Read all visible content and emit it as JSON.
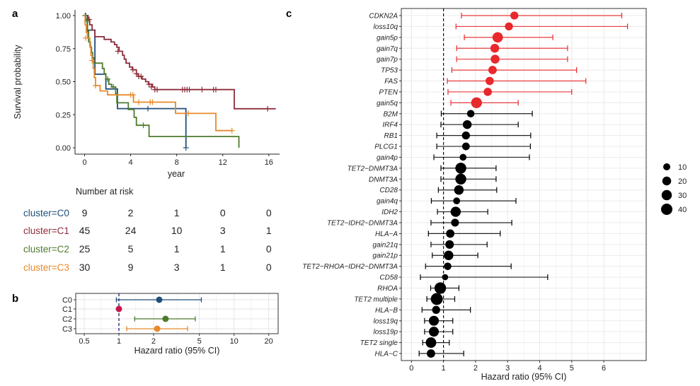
{
  "figure": {
    "panels": [
      "a",
      "b",
      "c"
    ]
  },
  "chart_data": [
    {
      "id": "a",
      "type": "line",
      "subtype": "kaplan-meier",
      "title": "",
      "xlabel": "year",
      "ylabel": "Survival probability",
      "xlim": [
        0,
        16.8
      ],
      "ylim": [
        0,
        1
      ],
      "x_ticks": [
        0,
        4,
        8,
        12,
        16
      ],
      "y_ticks": [
        "0.00",
        "0.25",
        "0.50",
        "0.75",
        "1.00"
      ],
      "grid": false,
      "series": [
        {
          "name": "cluster=C0",
          "color": "#1f4e79",
          "steps": [
            [
              0,
              1.0
            ],
            [
              0.25,
              0.89
            ],
            [
              0.9,
              0.556
            ],
            [
              1.85,
              0.445
            ],
            [
              2.85,
              0.296
            ],
            [
              8.8,
              0.0
            ]
          ],
          "end": 8.8,
          "censor": [
            [
              0.1,
              1.0
            ],
            [
              5.5,
              0.296
            ],
            [
              8.8,
              0.0
            ]
          ]
        },
        {
          "name": "cluster=C1",
          "color": "#8c2d3a",
          "steps": [
            [
              0,
              1.0
            ],
            [
              0.3,
              0.97
            ],
            [
              0.45,
              0.93
            ],
            [
              0.65,
              0.89
            ],
            [
              0.9,
              0.84
            ],
            [
              1.7,
              0.82
            ],
            [
              2.3,
              0.8
            ],
            [
              2.6,
              0.78
            ],
            [
              2.8,
              0.76
            ],
            [
              3.0,
              0.73
            ],
            [
              3.3,
              0.7
            ],
            [
              3.45,
              0.67
            ],
            [
              3.6,
              0.64
            ],
            [
              3.9,
              0.61
            ],
            [
              4.15,
              0.59
            ],
            [
              4.5,
              0.56
            ],
            [
              4.65,
              0.54
            ],
            [
              5.0,
              0.52
            ],
            [
              5.3,
              0.5
            ],
            [
              5.55,
              0.48
            ],
            [
              5.9,
              0.46
            ],
            [
              6.1,
              0.44
            ],
            [
              13.0,
              0.295
            ]
          ],
          "end": 16.6,
          "censor": [
            [
              0.4,
              0.97
            ],
            [
              2.9,
              0.73
            ],
            [
              4.2,
              0.59
            ],
            [
              4.5,
              0.56
            ],
            [
              4.7,
              0.54
            ],
            [
              4.9,
              0.54
            ],
            [
              5.6,
              0.48
            ],
            [
              5.8,
              0.46
            ],
            [
              6.1,
              0.44
            ],
            [
              6.3,
              0.44
            ],
            [
              8.5,
              0.44
            ],
            [
              8.7,
              0.44
            ],
            [
              8.9,
              0.44
            ],
            [
              9.1,
              0.44
            ],
            [
              10.2,
              0.44
            ],
            [
              11.2,
              0.44
            ],
            [
              11.4,
              0.44
            ],
            [
              15.9,
              0.295
            ]
          ]
        },
        {
          "name": "cluster=C2",
          "color": "#4e7a2e",
          "steps": [
            [
              0,
              1.0
            ],
            [
              0.1,
              0.96
            ],
            [
              0.25,
              0.88
            ],
            [
              0.35,
              0.8
            ],
            [
              0.5,
              0.76
            ],
            [
              0.6,
              0.72
            ],
            [
              0.7,
              0.68
            ],
            [
              0.8,
              0.64
            ],
            [
              1.55,
              0.6
            ],
            [
              1.7,
              0.56
            ],
            [
              1.85,
              0.52
            ],
            [
              2.1,
              0.48
            ],
            [
              2.35,
              0.46
            ],
            [
              2.7,
              0.41
            ],
            [
              2.8,
              0.34
            ],
            [
              3.8,
              0.29
            ],
            [
              4.3,
              0.23
            ],
            [
              4.5,
              0.17
            ],
            [
              5.6,
              0.085
            ],
            [
              13.4,
              0.0
            ]
          ],
          "end": 13.4,
          "censor": [
            [
              0.05,
              1.0
            ],
            [
              0.2,
              0.96
            ],
            [
              2.0,
              0.52
            ],
            [
              2.5,
              0.46
            ],
            [
              5.1,
              0.17
            ]
          ]
        },
        {
          "name": "cluster=C3",
          "color": "#e8892a",
          "steps": [
            [
              0,
              1.0
            ],
            [
              0.05,
              0.93
            ],
            [
              0.15,
              0.87
            ],
            [
              0.25,
              0.83
            ],
            [
              0.45,
              0.77
            ],
            [
              0.55,
              0.7
            ],
            [
              0.65,
              0.66
            ],
            [
              0.75,
              0.6
            ],
            [
              0.85,
              0.53
            ],
            [
              0.95,
              0.47
            ],
            [
              1.35,
              0.43
            ],
            [
              2.0,
              0.4
            ],
            [
              4.25,
              0.345
            ],
            [
              7.9,
              0.26
            ],
            [
              11.4,
              0.13
            ]
          ],
          "end": 12.8,
          "censor": [
            [
              0.1,
              0.83
            ],
            [
              0.65,
              0.66
            ],
            [
              0.95,
              0.47
            ],
            [
              4.0,
              0.4
            ],
            [
              4.2,
              0.4
            ],
            [
              4.7,
              0.345
            ],
            [
              5.7,
              0.345
            ],
            [
              5.9,
              0.345
            ],
            [
              9.0,
              0.26
            ],
            [
              12.8,
              0.13
            ]
          ]
        }
      ],
      "risk_table": {
        "title": "Number at risk",
        "times": [
          0,
          4,
          8,
          12,
          16
        ],
        "rows": [
          {
            "label": "cluster=C0",
            "color": "#1f4e79",
            "values": [
              9,
              2,
              1,
              0,
              0
            ]
          },
          {
            "label": "cluster=C1",
            "color": "#8c2d3a",
            "values": [
              45,
              24,
              10,
              3,
              1
            ]
          },
          {
            "label": "cluster=C2",
            "color": "#4e7a2e",
            "values": [
              25,
              5,
              1,
              1,
              0
            ]
          },
          {
            "label": "cluster=C3",
            "color": "#e8892a",
            "values": [
              30,
              9,
              3,
              1,
              0
            ]
          }
        ]
      }
    },
    {
      "id": "b",
      "type": "scatter",
      "subtype": "forest-log",
      "xlabel": "Hazard ratio (95% CI)",
      "ylabel": "",
      "xscale": "log",
      "xlim": [
        0.42,
        24
      ],
      "x_ticks": [
        0.5,
        1,
        2,
        5,
        10,
        20
      ],
      "x_tick_labels": [
        "0.5",
        "1",
        "2",
        "5",
        "10",
        "20"
      ],
      "reference_line": 1,
      "grid": true,
      "rows": [
        {
          "label": "C0",
          "hr": 2.24,
          "lo": 0.95,
          "hi": 5.2,
          "color": "#1f4e79"
        },
        {
          "label": "C1",
          "hr": 1.0,
          "lo": null,
          "hi": null,
          "color": "#c8174a"
        },
        {
          "label": "C2",
          "hr": 2.54,
          "lo": 1.37,
          "hi": 4.6,
          "color": "#4e7a2e"
        },
        {
          "label": "C3",
          "hr": 2.15,
          "lo": 1.17,
          "hi": 3.95,
          "color": "#e8892a"
        }
      ]
    },
    {
      "id": "c",
      "type": "scatter",
      "subtype": "forest",
      "xlabel": "Hazard ratio (95% CI)",
      "ylabel": "",
      "xlim": [
        -0.3,
        7.3
      ],
      "x_ticks": [
        0,
        1,
        2,
        3,
        4,
        5,
        6
      ],
      "x_tick_labels": [
        "0",
        "1",
        "2",
        "3",
        "4",
        "5",
        "6"
      ],
      "reference_line": 1,
      "grid": true,
      "significant_color": "#e8282b",
      "default_color": "#000000",
      "legend": {
        "title": "",
        "position": "right",
        "sizes": [
          10,
          20,
          30,
          40
        ]
      },
      "rows": [
        {
          "label": "CDKN2A",
          "hr": 3.21,
          "lo": 1.56,
          "hi": 6.56,
          "n": 15,
          "sig": true
        },
        {
          "label": "loss10q",
          "hr": 3.04,
          "lo": 1.39,
          "hi": 6.74,
          "n": 15,
          "sig": true
        },
        {
          "label": "gain5p",
          "hr": 2.69,
          "lo": 1.65,
          "hi": 4.41,
          "n": 32,
          "sig": true
        },
        {
          "label": "gain7q",
          "hr": 2.6,
          "lo": 1.41,
          "hi": 4.87,
          "n": 20,
          "sig": true
        },
        {
          "label": "gain7p",
          "hr": 2.61,
          "lo": 1.41,
          "hi": 4.87,
          "n": 20,
          "sig": true
        },
        {
          "label": "TP53",
          "hr": 2.53,
          "lo": 1.26,
          "hi": 5.15,
          "n": 17,
          "sig": true
        },
        {
          "label": "FAS",
          "hr": 2.44,
          "lo": 1.12,
          "hi": 5.44,
          "n": 16,
          "sig": true
        },
        {
          "label": "PTEN",
          "hr": 2.38,
          "lo": 1.14,
          "hi": 5.0,
          "n": 16,
          "sig": true
        },
        {
          "label": "gain5q",
          "hr": 2.03,
          "lo": 1.23,
          "hi": 3.33,
          "n": 35,
          "sig": true
        },
        {
          "label": "B2M",
          "hr": 1.85,
          "lo": 0.93,
          "hi": 3.77,
          "n": 12,
          "sig": false
        },
        {
          "label": "IRF4",
          "hr": 1.74,
          "lo": 0.92,
          "hi": 3.33,
          "n": 20,
          "sig": false
        },
        {
          "label": "RB1",
          "hr": 1.7,
          "lo": 0.79,
          "hi": 3.72,
          "n": 15,
          "sig": false
        },
        {
          "label": "PLCG1",
          "hr": 1.7,
          "lo": 0.79,
          "hi": 3.71,
          "n": 13,
          "sig": false
        },
        {
          "label": "gain4p",
          "hr": 1.61,
          "lo": 0.7,
          "hi": 3.68,
          "n": 9,
          "sig": false
        },
        {
          "label": "TET2−DNMT3A",
          "hr": 1.54,
          "lo": 0.92,
          "hi": 2.64,
          "n": 36,
          "sig": false
        },
        {
          "label": "DNMT3A",
          "hr": 1.54,
          "lo": 0.92,
          "hi": 2.64,
          "n": 36,
          "sig": false
        },
        {
          "label": "CD28",
          "hr": 1.48,
          "lo": 0.84,
          "hi": 2.66,
          "n": 25,
          "sig": false
        },
        {
          "label": "gain4q",
          "hr": 1.41,
          "lo": 0.62,
          "hi": 3.26,
          "n": 9,
          "sig": false
        },
        {
          "label": "IDH2",
          "hr": 1.38,
          "lo": 0.81,
          "hi": 2.38,
          "n": 30,
          "sig": false
        },
        {
          "label": "TET2−IDH2−DNMT3A",
          "hr": 1.36,
          "lo": 0.61,
          "hi": 3.13,
          "n": 14,
          "sig": false
        },
        {
          "label": "HLA−A",
          "hr": 1.21,
          "lo": 0.53,
          "hi": 2.77,
          "n": 17,
          "sig": false
        },
        {
          "label": "gain21q",
          "hr": 1.19,
          "lo": 0.61,
          "hi": 2.36,
          "n": 18,
          "sig": false
        },
        {
          "label": "gain21p",
          "hr": 1.16,
          "lo": 0.65,
          "hi": 2.07,
          "n": 25,
          "sig": false
        },
        {
          "label": "TET2−RHOA−IDH2−DNMT3A",
          "hr": 1.13,
          "lo": 0.44,
          "hi": 3.11,
          "n": 12,
          "sig": false
        },
        {
          "label": "CD58",
          "hr": 1.05,
          "lo": 0.28,
          "hi": 4.25,
          "n": 6,
          "sig": false
        },
        {
          "label": "RHOA",
          "hr": 0.9,
          "lo": 0.6,
          "hi": 1.48,
          "n": 42,
          "sig": false
        },
        {
          "label": "TET2 multiple",
          "hr": 0.79,
          "lo": 0.48,
          "hi": 1.35,
          "n": 46,
          "sig": false
        },
        {
          "label": "HLA−B",
          "hr": 0.77,
          "lo": 0.33,
          "hi": 1.84,
          "n": 15,
          "sig": false
        },
        {
          "label": "loss19q",
          "hr": 0.7,
          "lo": 0.41,
          "hi": 1.29,
          "n": 28,
          "sig": false
        },
        {
          "label": "loss19p",
          "hr": 0.7,
          "lo": 0.41,
          "hi": 1.29,
          "n": 28,
          "sig": false
        },
        {
          "label": "TET2 single",
          "hr": 0.61,
          "lo": 0.35,
          "hi": 1.18,
          "n": 33,
          "sig": false
        },
        {
          "label": "HLA−C",
          "hr": 0.61,
          "lo": 0.24,
          "hi": 1.63,
          "n": 17,
          "sig": false
        }
      ]
    }
  ]
}
